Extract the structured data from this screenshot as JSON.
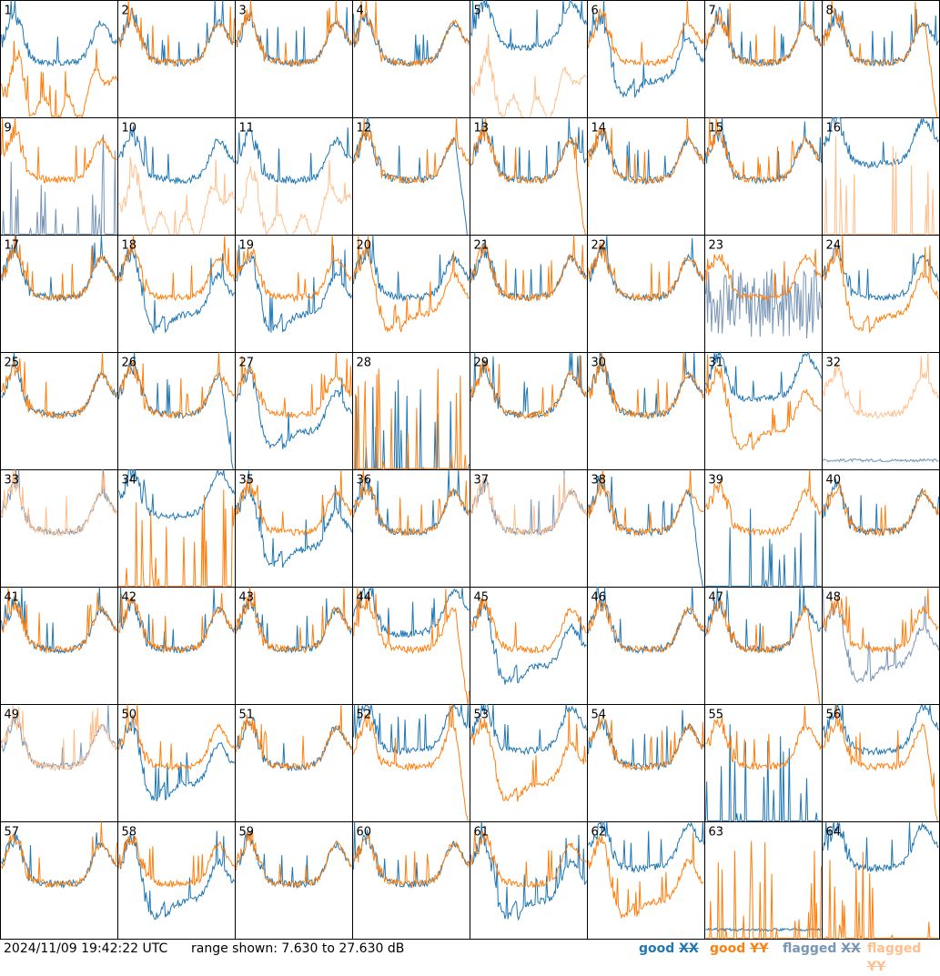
{
  "chart_data": {
    "type": "line",
    "layout": "8x8 grid of small multiples (antenna spectra)",
    "ylim": [
      7.63,
      27.63
    ],
    "colors": {
      "good_xx": "#1f77b4",
      "good_yy": "#ff7f0e",
      "flagged_xx": "#7795b6",
      "flagged_yy": "#ffbf8c"
    },
    "panels": [
      {
        "label": "1",
        "xx": "good",
        "yy": "good",
        "xx_style": "normal",
        "yy_style": "low"
      },
      {
        "label": "2",
        "xx": "good",
        "yy": "good",
        "xx_style": "normal",
        "yy_style": "normal"
      },
      {
        "label": "3",
        "xx": "good",
        "yy": "good",
        "xx_style": "normal",
        "yy_style": "normal"
      },
      {
        "label": "4",
        "xx": "good",
        "yy": "good",
        "xx_style": "normal",
        "yy_style": "normal"
      },
      {
        "label": "5",
        "xx": "good",
        "yy": "flagged",
        "xx_style": "high",
        "yy_style": "low"
      },
      {
        "label": "6",
        "xx": "good",
        "yy": "good",
        "xx_style": "dip",
        "yy_style": "normal"
      },
      {
        "label": "7",
        "xx": "good",
        "yy": "good",
        "xx_style": "normal",
        "yy_style": "normal"
      },
      {
        "label": "8",
        "xx": "good",
        "yy": "good",
        "xx_style": "normal",
        "yy_style": "dropoff"
      },
      {
        "label": "9",
        "xx": "flagged",
        "yy": "good",
        "xx_style": "spikes",
        "yy_style": "normal"
      },
      {
        "label": "10",
        "xx": "good",
        "yy": "flagged",
        "xx_style": "normal",
        "yy_style": "low"
      },
      {
        "label": "11",
        "xx": "good",
        "yy": "flagged",
        "xx_style": "normal",
        "yy_style": "low"
      },
      {
        "label": "12",
        "xx": "good",
        "yy": "good",
        "xx_style": "dropoff",
        "yy_style": "normal"
      },
      {
        "label": "13",
        "xx": "good",
        "yy": "good",
        "xx_style": "normal",
        "yy_style": "dropoff"
      },
      {
        "label": "14",
        "xx": "good",
        "yy": "good",
        "xx_style": "normal",
        "yy_style": "normal"
      },
      {
        "label": "15",
        "xx": "good",
        "yy": "good",
        "xx_style": "normal",
        "yy_style": "normal"
      },
      {
        "label": "16",
        "xx": "good",
        "yy": "flagged",
        "xx_style": "high",
        "yy_style": "spikes"
      },
      {
        "label": "17",
        "xx": "good",
        "yy": "good",
        "xx_style": "normal",
        "yy_style": "normal"
      },
      {
        "label": "18",
        "xx": "good",
        "yy": "good",
        "xx_style": "dip",
        "yy_style": "normal"
      },
      {
        "label": "19",
        "xx": "good",
        "yy": "good",
        "xx_style": "dip",
        "yy_style": "normal"
      },
      {
        "label": "20",
        "xx": "good",
        "yy": "good",
        "xx_style": "normal",
        "yy_style": "dip"
      },
      {
        "label": "21",
        "xx": "good",
        "yy": "good",
        "xx_style": "normal",
        "yy_style": "normal"
      },
      {
        "label": "22",
        "xx": "good",
        "yy": "good",
        "xx_style": "normal",
        "yy_style": "normal"
      },
      {
        "label": "23",
        "xx": "flagged",
        "yy": "good",
        "xx_style": "noise",
        "yy_style": "normal"
      },
      {
        "label": "24",
        "xx": "good",
        "yy": "good",
        "xx_style": "normal",
        "yy_style": "dip"
      },
      {
        "label": "25",
        "xx": "good",
        "yy": "good",
        "xx_style": "normal",
        "yy_style": "normal"
      },
      {
        "label": "26",
        "xx": "good",
        "yy": "good",
        "xx_style": "dropoff",
        "yy_style": "normal"
      },
      {
        "label": "27",
        "xx": "good",
        "yy": "good",
        "xx_style": "dip",
        "yy_style": "normal"
      },
      {
        "label": "28",
        "xx": "good",
        "yy": "good",
        "xx_style": "spikes",
        "yy_style": "spikes"
      },
      {
        "label": "29",
        "xx": "good",
        "yy": "good",
        "xx_style": "normal",
        "yy_style": "normal"
      },
      {
        "label": "30",
        "xx": "good",
        "yy": "good",
        "xx_style": "normal",
        "yy_style": "normal"
      },
      {
        "label": "31",
        "xx": "good",
        "yy": "good",
        "xx_style": "high",
        "yy_style": "dip"
      },
      {
        "label": "32",
        "xx": "flagged",
        "yy": "flagged",
        "xx_style": "flat",
        "yy_style": "normal"
      },
      {
        "label": "33",
        "xx": "flagged",
        "yy": "flagged",
        "xx_style": "normal",
        "yy_style": "normal"
      },
      {
        "label": "34",
        "xx": "good",
        "yy": "good",
        "xx_style": "high",
        "yy_style": "spikes"
      },
      {
        "label": "35",
        "xx": "good",
        "yy": "good",
        "xx_style": "dip",
        "yy_style": "normal"
      },
      {
        "label": "36",
        "xx": "good",
        "yy": "good",
        "xx_style": "normal",
        "yy_style": "normal"
      },
      {
        "label": "37",
        "xx": "flagged",
        "yy": "flagged",
        "xx_style": "normal",
        "yy_style": "normal"
      },
      {
        "label": "38",
        "xx": "good",
        "yy": "good",
        "xx_style": "dropoff",
        "yy_style": "normal"
      },
      {
        "label": "39",
        "xx": "good",
        "yy": "good",
        "xx_style": "spikes",
        "yy_style": "normal"
      },
      {
        "label": "40",
        "xx": "good",
        "yy": "good",
        "xx_style": "normal",
        "yy_style": "normal"
      },
      {
        "label": "41",
        "xx": "good",
        "yy": "good",
        "xx_style": "normal",
        "yy_style": "normal"
      },
      {
        "label": "42",
        "xx": "good",
        "yy": "good",
        "xx_style": "normal",
        "yy_style": "normal"
      },
      {
        "label": "43",
        "xx": "good",
        "yy": "good",
        "xx_style": "normal",
        "yy_style": "normal"
      },
      {
        "label": "44",
        "xx": "good",
        "yy": "good",
        "xx_style": "high",
        "yy_style": "dropoff"
      },
      {
        "label": "45",
        "xx": "good",
        "yy": "good",
        "xx_style": "dip",
        "yy_style": "normal"
      },
      {
        "label": "46",
        "xx": "good",
        "yy": "good",
        "xx_style": "normal",
        "yy_style": "normal"
      },
      {
        "label": "47",
        "xx": "good",
        "yy": "good",
        "xx_style": "normal",
        "yy_style": "dropoff"
      },
      {
        "label": "48",
        "xx": "flagged",
        "yy": "good",
        "xx_style": "dip",
        "yy_style": "normal"
      },
      {
        "label": "49",
        "xx": "flagged",
        "yy": "flagged",
        "xx_style": "normal",
        "yy_style": "normal"
      },
      {
        "label": "50",
        "xx": "good",
        "yy": "good",
        "xx_style": "dip",
        "yy_style": "normal"
      },
      {
        "label": "51",
        "xx": "good",
        "yy": "good",
        "xx_style": "normal",
        "yy_style": "normal"
      },
      {
        "label": "52",
        "xx": "good",
        "yy": "good",
        "xx_style": "high",
        "yy_style": "dropoff"
      },
      {
        "label": "53",
        "xx": "good",
        "yy": "good",
        "xx_style": "high",
        "yy_style": "dip"
      },
      {
        "label": "54",
        "xx": "good",
        "yy": "good",
        "xx_style": "normal",
        "yy_style": "normal"
      },
      {
        "label": "55",
        "xx": "good",
        "yy": "good",
        "xx_style": "spikes",
        "yy_style": "normal"
      },
      {
        "label": "56",
        "xx": "good",
        "yy": "good",
        "xx_style": "high",
        "yy_style": "dropoff"
      },
      {
        "label": "57",
        "xx": "good",
        "yy": "good",
        "xx_style": "normal",
        "yy_style": "normal"
      },
      {
        "label": "58",
        "xx": "good",
        "yy": "good",
        "xx_style": "dip",
        "yy_style": "normal"
      },
      {
        "label": "59",
        "xx": "good",
        "yy": "good",
        "xx_style": "normal",
        "yy_style": "normal"
      },
      {
        "label": "60",
        "xx": "good",
        "yy": "good",
        "xx_style": "normal",
        "yy_style": "normal"
      },
      {
        "label": "61",
        "xx": "good",
        "yy": "good",
        "xx_style": "dip",
        "yy_style": "normal"
      },
      {
        "label": "62",
        "xx": "good",
        "yy": "good",
        "xx_style": "high",
        "yy_style": "dip"
      },
      {
        "label": "63",
        "xx": "good",
        "yy": "good",
        "xx_style": "flat",
        "yy_style": "spikes"
      },
      {
        "label": "64",
        "xx": "good",
        "yy": "good",
        "xx_style": "high",
        "yy_style": "spikes"
      }
    ]
  },
  "footer": {
    "timestamp": "2024/11/09 19:42:22 UTC",
    "range_text": "range shown: 7.630 to 27.630 dB",
    "legend": {
      "good_label": "good",
      "flagged_label": "flagged",
      "xx_label": "XX",
      "yy_label": "YY"
    }
  }
}
